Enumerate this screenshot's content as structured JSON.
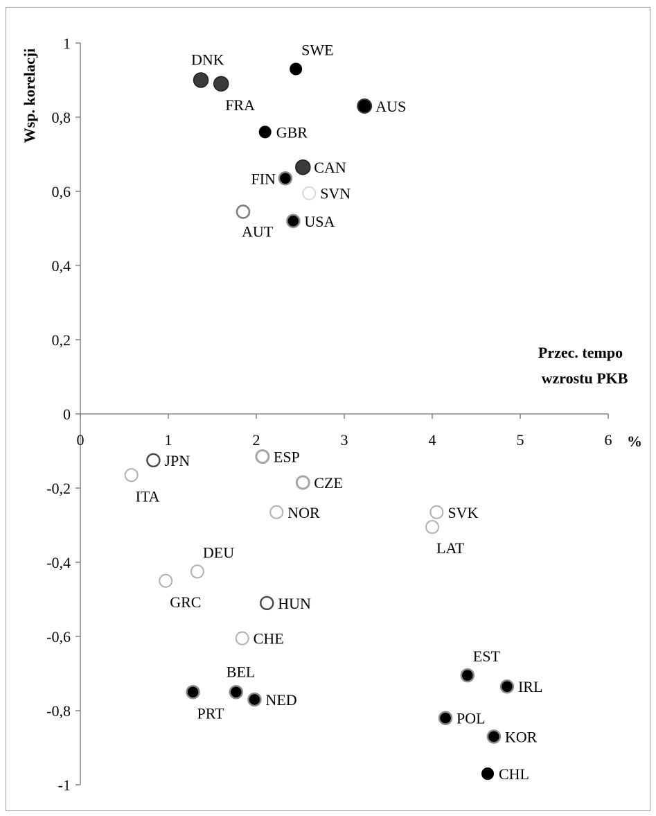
{
  "chart_data": {
    "type": "scatter",
    "xlabel_lines": [
      "Przec. tempo",
      "wzrostu PKB"
    ],
    "xunit": "%",
    "ylabel": "Wsp. korelacji",
    "xlim": [
      0,
      6
    ],
    "ylim": [
      -1,
      1
    ],
    "x_ticks": [
      "0",
      "1",
      "2",
      "3",
      "4",
      "5",
      "6"
    ],
    "y_ticks": [
      "1",
      "0,8",
      "0,6",
      "0,4",
      "0,2",
      "0",
      "-0,2",
      "-0,4",
      "-0,6",
      "-0,8",
      "-1"
    ],
    "y_tick_values": [
      1,
      0.8,
      0.6,
      0.4,
      0.2,
      0,
      -0.2,
      -0.4,
      -0.6,
      -0.8,
      -1
    ],
    "grid": false,
    "legend": "none",
    "points": [
      {
        "label": "DNK",
        "x": 1.37,
        "y": 0.9,
        "style": "dark-gray-large",
        "label_pos": "top"
      },
      {
        "label": "FRA",
        "x": 1.6,
        "y": 0.89,
        "style": "dark-gray-large",
        "label_pos": "bottom-right"
      },
      {
        "label": "SWE",
        "x": 2.45,
        "y": 0.93,
        "style": "black",
        "label_pos": "top-right"
      },
      {
        "label": "AUS",
        "x": 3.23,
        "y": 0.83,
        "style": "black-large",
        "label_pos": "right"
      },
      {
        "label": "GBR",
        "x": 2.1,
        "y": 0.76,
        "style": "black",
        "label_pos": "right"
      },
      {
        "label": "CAN",
        "x": 2.53,
        "y": 0.665,
        "style": "dark-gray-large",
        "label_pos": "right"
      },
      {
        "label": "FIN",
        "x": 2.33,
        "y": 0.635,
        "style": "black-gray-edge",
        "label_pos": "left"
      },
      {
        "label": "SVN",
        "x": 2.6,
        "y": 0.595,
        "style": "ring-very-light",
        "label_pos": "right"
      },
      {
        "label": "AUT",
        "x": 1.85,
        "y": 0.545,
        "style": "ring-gray",
        "label_pos": "bottom"
      },
      {
        "label": "USA",
        "x": 2.42,
        "y": 0.52,
        "style": "black-gray-edge",
        "label_pos": "right"
      },
      {
        "label": "JPN",
        "x": 0.83,
        "y": -0.125,
        "style": "ring-dark",
        "label_pos": "right"
      },
      {
        "label": "ITA",
        "x": 0.58,
        "y": -0.165,
        "style": "ring-light",
        "label_pos": "bottom-right"
      },
      {
        "label": "ESP",
        "x": 2.07,
        "y": -0.115,
        "style": "ring-light-thick",
        "label_pos": "right"
      },
      {
        "label": "CZE",
        "x": 2.53,
        "y": -0.185,
        "style": "ring-light-thick",
        "label_pos": "right"
      },
      {
        "label": "NOR",
        "x": 2.23,
        "y": -0.265,
        "style": "ring-light",
        "label_pos": "right"
      },
      {
        "label": "SVK",
        "x": 4.05,
        "y": -0.265,
        "style": "ring-light",
        "label_pos": "right"
      },
      {
        "label": "LAT",
        "x": 4.0,
        "y": -0.305,
        "style": "ring-light",
        "label_pos": "bottom-right"
      },
      {
        "label": "DEU",
        "x": 1.33,
        "y": -0.425,
        "style": "ring-light",
        "label_pos": "top-right"
      },
      {
        "label": "GRC",
        "x": 0.97,
        "y": -0.45,
        "style": "ring-light",
        "label_pos": "bottom-right"
      },
      {
        "label": "HUN",
        "x": 2.12,
        "y": -0.51,
        "style": "ring-dark",
        "label_pos": "right"
      },
      {
        "label": "CHE",
        "x": 1.84,
        "y": -0.605,
        "style": "ring-light",
        "label_pos": "right"
      },
      {
        "label": "BEL",
        "x": 1.77,
        "y": -0.75,
        "style": "black-gray-edge",
        "label_pos": "top"
      },
      {
        "label": "PRT",
        "x": 1.28,
        "y": -0.75,
        "style": "black-gray-edge",
        "label_pos": "bottom-right"
      },
      {
        "label": "NED",
        "x": 1.98,
        "y": -0.77,
        "style": "black-gray-edge",
        "label_pos": "right"
      },
      {
        "label": "EST",
        "x": 4.4,
        "y": -0.705,
        "style": "black-gray-edge",
        "label_pos": "top-right"
      },
      {
        "label": "IRL",
        "x": 4.85,
        "y": -0.735,
        "style": "black-gray-edge",
        "label_pos": "right"
      },
      {
        "label": "POL",
        "x": 4.15,
        "y": -0.82,
        "style": "black-gray-edge",
        "label_pos": "right"
      },
      {
        "label": "KOR",
        "x": 4.7,
        "y": -0.87,
        "style": "black-gray-edge",
        "label_pos": "right"
      },
      {
        "label": "CHL",
        "x": 4.63,
        "y": -0.97,
        "style": "black",
        "label_pos": "right"
      }
    ]
  }
}
